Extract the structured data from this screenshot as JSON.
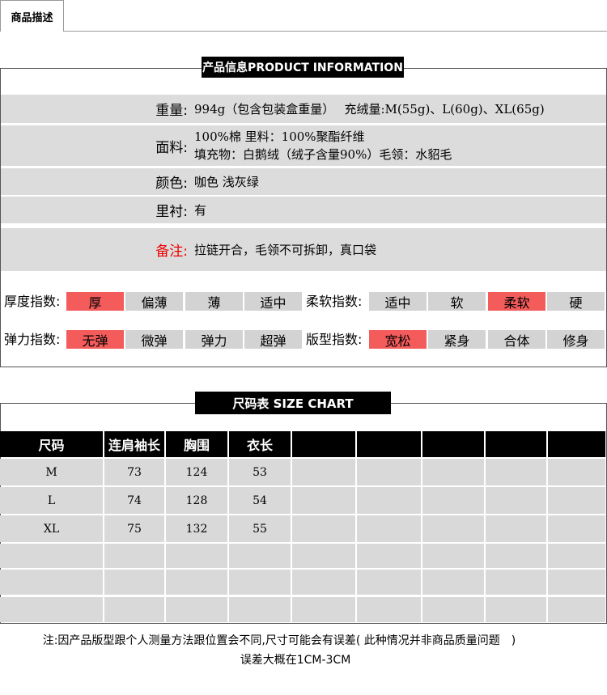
{
  "tab": "商品描述",
  "product_info": {
    "title": "产品信息PRODUCT INFORMATION",
    "details": [
      {
        "label": "重量:",
        "lines": [
          "994g（包含包装盒重量）　 充绒量:M(55g)、L(60g)、XL(65g)"
        ]
      },
      {
        "label": "面料:",
        "lines": [
          "100%棉  里料：100%聚酯纤维",
          "填充物：白鹅绒（绒子含量90%）毛领：水貂毛"
        ]
      },
      {
        "label": "颜色:",
        "lines": [
          "咖色 浅灰绿"
        ]
      },
      {
        "label": "里衬:",
        "lines": [
          "有"
        ]
      },
      {
        "label": "备注:",
        "lines": [
          "拉链开合，毛领不可拆卸，真口袋"
        ],
        "highlight": true
      }
    ],
    "indices": [
      [
        {
          "label": "厚度指数:",
          "options": [
            "厚",
            "偏薄",
            "薄",
            "适中"
          ],
          "selected": 0
        },
        {
          "label": "柔软指数:",
          "options": [
            "适中",
            "软",
            "柔软",
            "硬"
          ],
          "selected": 2
        }
      ],
      [
        {
          "label": "弹力指数:",
          "options": [
            "无弹",
            "微弹",
            "弹力",
            "超弹"
          ],
          "selected": 0
        },
        {
          "label": "版型指数:",
          "options": [
            "宽松",
            "紧身",
            "合体",
            "修身"
          ],
          "selected": 0
        }
      ]
    ]
  },
  "size_chart": {
    "title": "尺码表 SIZE CHART",
    "headers": [
      "尺码",
      "连肩袖长",
      "胸围",
      "衣长"
    ],
    "rows": [
      [
        "M",
        73,
        124,
        53
      ],
      [
        "L",
        74,
        128,
        54
      ],
      [
        "XL",
        75,
        132,
        55
      ]
    ]
  },
  "notes": [
    "注:因产品版型跟个人测量方法跟位置会不同,尺寸可能会有误差( 此种情况并非商品质量问题　)",
    "误差大概在1CM-3CM"
  ]
}
